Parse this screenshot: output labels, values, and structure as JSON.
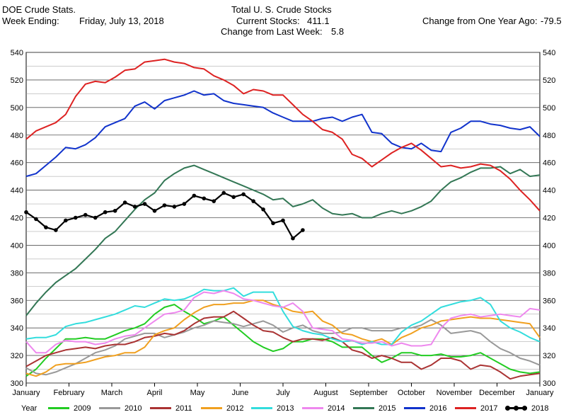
{
  "header": {
    "left_line1": "DOE Crude Stats.",
    "left_line2_label": "Week Ending:",
    "left_line2_value": "Friday, July 13, 2018",
    "center_line1": "Total U. S. Crude Stocks",
    "center_line2_label": "Current Stocks:",
    "center_line2_value": "411.1",
    "center_line3_label": "Change from Last Week:",
    "center_line3_value": "5.8",
    "right_label": "Change from One Year Ago:",
    "right_value": "-79.5"
  },
  "legend_title": "Year",
  "chart_data": {
    "type": "line",
    "ylim": [
      300,
      540
    ],
    "yticks": [
      300,
      320,
      340,
      360,
      380,
      400,
      420,
      440,
      460,
      480,
      500,
      520,
      540
    ],
    "xlim": [
      0,
      52
    ],
    "month_labels": [
      "January",
      "February",
      "March",
      "April",
      "May",
      "June",
      "July",
      "August",
      "September",
      "October",
      "November",
      "December",
      "January"
    ],
    "grid": true,
    "legend_placement": "bottom",
    "series": [
      {
        "name": "2009",
        "color": "#22cc22",
        "values": [
          305,
          310,
          318,
          325,
          332,
          332,
          333,
          332,
          332,
          335,
          338,
          340,
          343,
          350,
          355,
          357,
          352,
          348,
          343,
          345,
          348,
          342,
          336,
          330,
          326,
          323,
          325,
          330,
          330,
          332,
          332,
          330,
          326,
          326,
          326,
          320,
          315,
          318,
          322,
          322,
          320,
          320,
          321,
          319,
          319,
          320,
          322,
          318,
          314,
          310,
          308,
          307,
          308
        ]
      },
      {
        "name": "2010",
        "color": "#999999",
        "values": [
          311,
          307,
          306,
          308,
          311,
          314,
          318,
          322,
          324,
          327,
          332,
          334,
          336,
          336,
          333,
          335,
          337,
          340,
          342,
          345,
          344,
          343,
          341,
          343,
          345,
          342,
          337,
          340,
          342,
          338,
          336,
          336,
          337,
          340,
          340,
          338,
          338,
          338,
          340,
          340,
          342,
          346,
          342,
          336,
          337,
          338,
          336,
          330,
          325,
          322,
          318,
          316,
          313
        ]
      },
      {
        "name": "2011",
        "color": "#aa3333",
        "values": [
          312,
          316,
          320,
          322,
          324,
          325,
          326,
          325,
          327,
          328,
          328,
          330,
          333,
          334,
          336,
          335,
          338,
          343,
          347,
          348,
          348,
          352,
          347,
          342,
          338,
          337,
          333,
          330,
          332,
          332,
          331,
          333,
          330,
          324,
          322,
          318,
          320,
          318,
          315,
          315,
          310,
          313,
          318,
          318,
          316,
          310,
          313,
          312,
          308,
          303,
          305,
          306,
          307
        ]
      },
      {
        "name": "2012",
        "color": "#f0a020",
        "values": [
          307,
          305,
          308,
          313,
          314,
          314,
          315,
          317,
          319,
          320,
          322,
          322,
          326,
          335,
          338,
          340,
          346,
          351,
          355,
          357,
          357,
          358,
          358,
          360,
          360,
          357,
          355,
          352,
          351,
          352,
          345,
          342,
          336,
          335,
          332,
          330,
          332,
          328,
          333,
          336,
          340,
          342,
          345,
          346,
          347,
          348,
          347,
          347,
          346,
          345,
          344,
          343,
          333
        ]
      },
      {
        "name": "2013",
        "color": "#33dddd",
        "values": [
          332,
          333,
          333,
          335,
          341,
          343,
          344,
          346,
          348,
          350,
          353,
          356,
          355,
          358,
          361,
          360,
          361,
          364,
          368,
          367,
          367,
          369,
          363,
          366,
          366,
          366,
          352,
          341,
          338,
          336,
          335,
          332,
          330,
          331,
          328,
          330,
          328,
          328,
          337,
          342,
          345,
          350,
          355,
          357,
          359,
          360,
          362,
          357,
          345,
          340,
          337,
          333,
          330
        ]
      },
      {
        "name": "2014",
        "color": "#ee88ee",
        "values": [
          330,
          322,
          322,
          328,
          331,
          330,
          330,
          328,
          329,
          332,
          334,
          335,
          340,
          345,
          350,
          351,
          353,
          362,
          366,
          365,
          367,
          365,
          361,
          360,
          358,
          356,
          355,
          358,
          352,
          340,
          339,
          338,
          332,
          331,
          329,
          329,
          330,
          327,
          329,
          327,
          327,
          328,
          340,
          347,
          349,
          350,
          348,
          349,
          350,
          349,
          348,
          354,
          353
        ]
      },
      {
        "name": "2015",
        "color": "#337755",
        "values": [
          349,
          358,
          366,
          373,
          378,
          383,
          390,
          397,
          405,
          410,
          418,
          426,
          433,
          438,
          447,
          452,
          456,
          458,
          455,
          452,
          449,
          446,
          443,
          440,
          437,
          433,
          434,
          428,
          430,
          433,
          427,
          423,
          422,
          423,
          420,
          420,
          423,
          425,
          423,
          425,
          428,
          432,
          440,
          446,
          449,
          453,
          456,
          456,
          457,
          452,
          455,
          450,
          451
        ]
      },
      {
        "name": "2016",
        "color": "#1133cc",
        "values": [
          450,
          452,
          458,
          464,
          471,
          470,
          473,
          478,
          486,
          489,
          492,
          501,
          504,
          499,
          505,
          507,
          509,
          512,
          509,
          510,
          505,
          503,
          502,
          501,
          500,
          496,
          493,
          490,
          490,
          490,
          492,
          493,
          490,
          493,
          495,
          482,
          481,
          474,
          471,
          470,
          474,
          469,
          468,
          482,
          485,
          490,
          490,
          488,
          487,
          485,
          484,
          486,
          479
        ]
      },
      {
        "name": "2017",
        "color": "#dd2222",
        "values": [
          477,
          483,
          486,
          489,
          495,
          508,
          517,
          519,
          518,
          522,
          527,
          528,
          533,
          534,
          535,
          533,
          532,
          529,
          528,
          523,
          520,
          516,
          510,
          513,
          512,
          509,
          509,
          502,
          495,
          490,
          484,
          482,
          477,
          466,
          463,
          457,
          462,
          467,
          471,
          474,
          469,
          463,
          457,
          458,
          456,
          457,
          459,
          458,
          454,
          448,
          440,
          433,
          425
        ]
      },
      {
        "name": "2018",
        "color": "#000000",
        "values": [
          424,
          419,
          413,
          411,
          418,
          420,
          422,
          420,
          424,
          425,
          431,
          428,
          430,
          425,
          429,
          428,
          430,
          436,
          434,
          432,
          438,
          435,
          437,
          432,
          426,
          416,
          418,
          405,
          411
        ]
      }
    ]
  }
}
